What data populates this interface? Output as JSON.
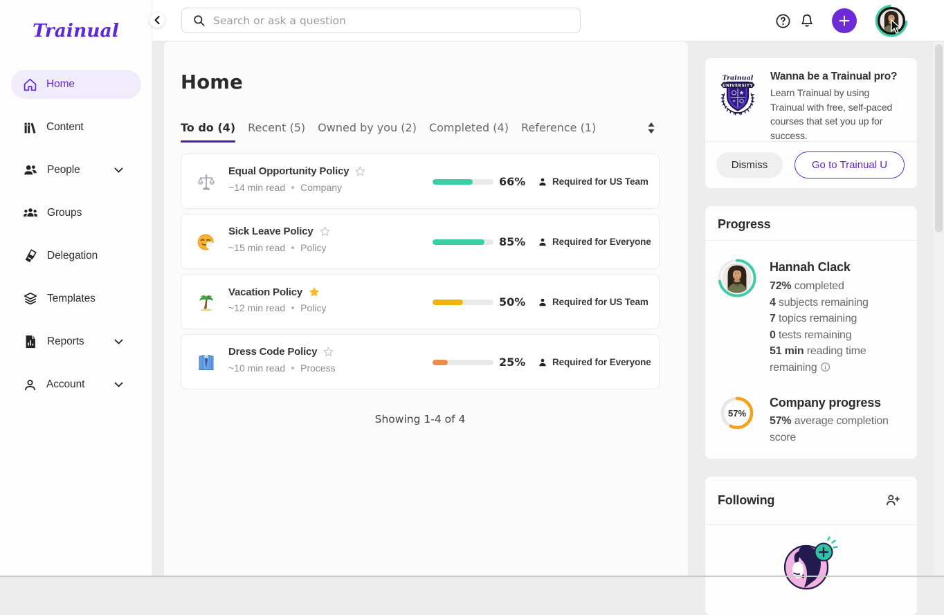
{
  "brand": {
    "logo": "Trainual",
    "accent": "#5C2BD6"
  },
  "topbar": {
    "search_placeholder": "Search or ask a question"
  },
  "sidebar": {
    "items": [
      {
        "label": "Home"
      },
      {
        "label": "Content"
      },
      {
        "label": "People"
      },
      {
        "label": "Groups"
      },
      {
        "label": "Delegation"
      },
      {
        "label": "Templates"
      },
      {
        "label": "Reports"
      },
      {
        "label": "Account"
      }
    ]
  },
  "page": {
    "title": "Home",
    "tabs": [
      {
        "label": "To do (4)"
      },
      {
        "label": "Recent (5)"
      },
      {
        "label": "Owned by you (2)"
      },
      {
        "label": "Completed (4)"
      },
      {
        "label": "Reference (1)"
      }
    ],
    "showing": "Showing 1-4 of 4"
  },
  "todo": [
    {
      "title": "Equal Opportunity Policy",
      "icon": "balance-scale",
      "starred": false,
      "read_time": "~14 min read",
      "content_type": "Company",
      "percent": 66,
      "percent_label": "66%",
      "bar_color": "#3BCFA4",
      "required": "Required for US Team"
    },
    {
      "title": "Sick Leave Policy",
      "icon": "sneezing-face",
      "starred": false,
      "read_time": "~15 min read",
      "content_type": "Policy",
      "percent": 85,
      "percent_label": "85%",
      "bar_color": "#3BCFA4",
      "required": "Required for Everyone"
    },
    {
      "title": "Vacation Policy",
      "icon": "palm-tree",
      "starred": true,
      "read_time": "~12 min read",
      "content_type": "Policy",
      "percent": 50,
      "percent_label": "50%",
      "bar_color": "#EFB30E",
      "required": "Required for US Team"
    },
    {
      "title": "Dress Code Policy",
      "icon": "necktie",
      "starred": false,
      "read_time": "~10 min read",
      "content_type": "Process",
      "percent": 25,
      "percent_label": "25%",
      "bar_color": "#EC8E47",
      "required": "Required for Everyone"
    }
  ],
  "promo": {
    "title": "Wanna be a Trainual pro?",
    "body": "Learn Trainual by using Trainual with free, self-paced courses that set you up for success.",
    "dismiss_label": "Dismiss",
    "cta_label": "Go to Trainual U"
  },
  "progress": {
    "title": "Progress",
    "user": {
      "name": "Hannah Clack",
      "ring_percent": 72,
      "stats": [
        {
          "value": "72%",
          "label": "completed"
        },
        {
          "value": "4",
          "label": "subjects remaining"
        },
        {
          "value": "7",
          "label": "topics remaining"
        },
        {
          "value": "0",
          "label": "tests remaining"
        },
        {
          "value": "51 min",
          "label": "reading time remaining"
        }
      ]
    },
    "company": {
      "title": "Company progress",
      "percent": 57,
      "percent_label": "57%",
      "label": "average completion score"
    }
  },
  "following": {
    "title": "Following"
  }
}
